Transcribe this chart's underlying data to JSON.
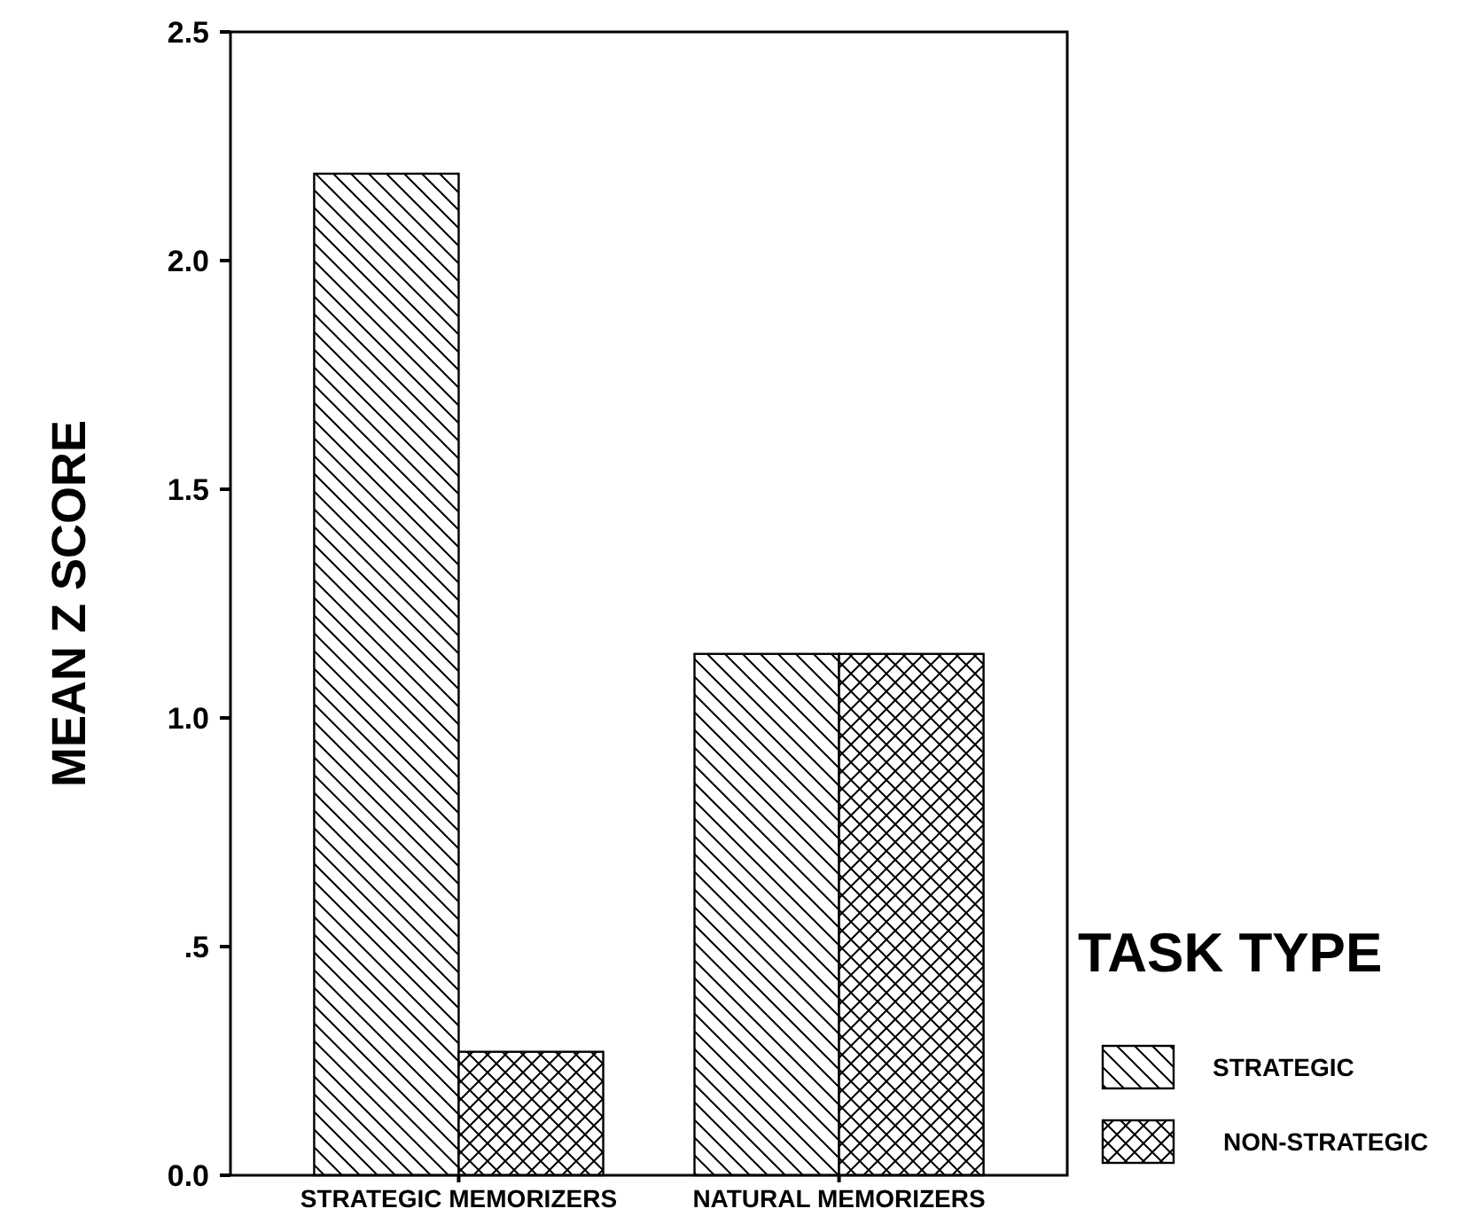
{
  "chart_data": {
    "type": "bar",
    "ylabel": "MEAN Z SCORE",
    "legend_title": "TASK TYPE",
    "categories": [
      "STRATEGIC MEMORIZERS",
      "NATURAL MEMORIZERS"
    ],
    "series": [
      {
        "name": "STRATEGIC",
        "color": "#000000",
        "values": [
          2.19,
          1.14
        ]
      },
      {
        "name": "NON-STRATEGIC",
        "color": "#000000",
        "values": [
          0.27,
          1.14
        ]
      }
    ],
    "ylim": [
      0,
      2.5
    ],
    "yticks": [
      {
        "value": 0,
        "label": "0.0"
      },
      {
        "value": 0.5,
        "label": ".5"
      },
      {
        "value": 1,
        "label": "1.0"
      },
      1.5,
      {
        "value": 2,
        "label": "2.0"
      },
      2.5
    ],
    "grid": false,
    "legend": "right"
  }
}
